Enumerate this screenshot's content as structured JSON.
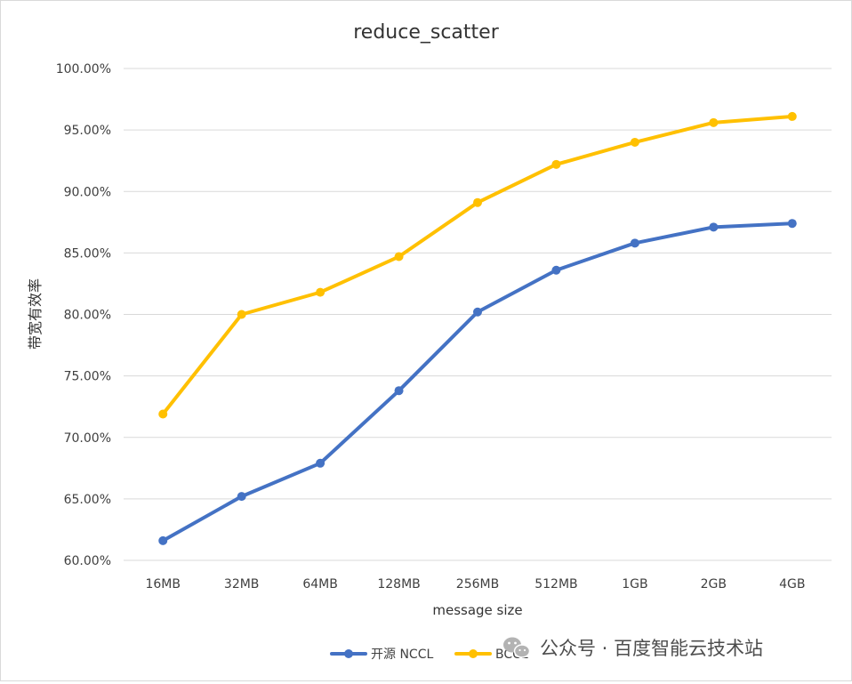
{
  "chart_data": {
    "type": "line",
    "title": "reduce_scatter",
    "xlabel": "message size",
    "ylabel": "带宽有效率",
    "categories": [
      "16MB",
      "32MB",
      "64MB",
      "128MB",
      "256MB",
      "512MB",
      "1GB",
      "2GB",
      "4GB"
    ],
    "series": [
      {
        "name": "开源 NCCL",
        "color": "#4472c4",
        "values": [
          61.6,
          65.2,
          67.9,
          73.8,
          80.2,
          83.6,
          85.8,
          87.1,
          87.4
        ]
      },
      {
        "name": "BCCL",
        "color": "#ffc000",
        "values": [
          71.9,
          80.0,
          81.8,
          84.7,
          89.1,
          92.2,
          94.0,
          95.6,
          96.1
        ]
      }
    ],
    "ylim": [
      60,
      100
    ],
    "yticks": [
      "60.00%",
      "65.00%",
      "70.00%",
      "75.00%",
      "80.00%",
      "85.00%",
      "90.00%",
      "95.00%",
      "100.00%"
    ],
    "grid": true,
    "legend_position": "bottom"
  },
  "watermark": {
    "icon": "wechat-icon",
    "text": "公众号 · 百度智能云技术站"
  }
}
